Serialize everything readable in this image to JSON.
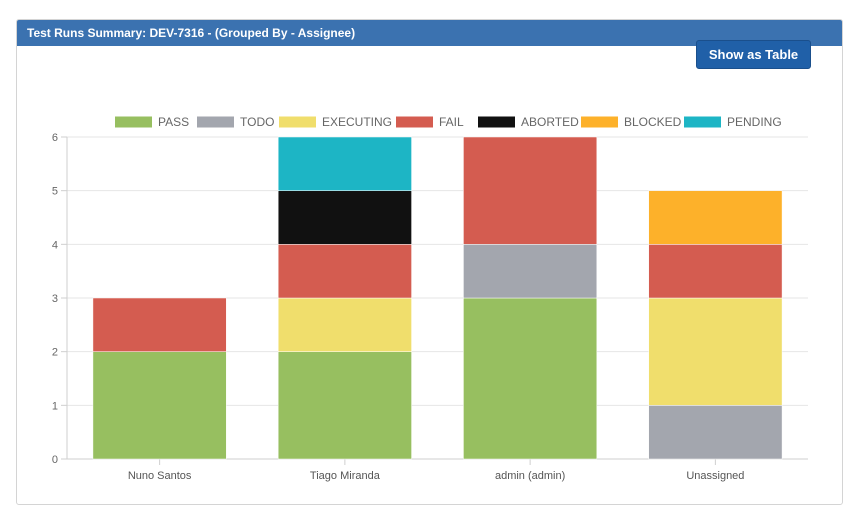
{
  "panel": {
    "title": "Test Runs Summary: DEV-7316 - (Grouped By - Assignee)",
    "show_table_label": "Show as Table"
  },
  "colors": {
    "PASS": "#97bf60",
    "TODO": "#a3a6ae",
    "EXECUTING": "#f0de6c",
    "FAIL": "#d45c50",
    "ABORTED": "#111111",
    "BLOCKED": "#fdb12a",
    "PENDING": "#1db5c5",
    "header": "#3b72b0",
    "button": "#2060a8"
  },
  "chart_data": {
    "type": "bar",
    "stacked": true,
    "title": "",
    "xlabel": "",
    "ylabel": "",
    "ylim": [
      0,
      6
    ],
    "yticks": [
      "0",
      "1",
      "2",
      "3",
      "4",
      "5",
      "6"
    ],
    "legend_position": "top",
    "grid": true,
    "categories": [
      "Nuno Santos",
      "Tiago Miranda",
      "admin (admin)",
      "Unassigned"
    ],
    "series": [
      {
        "name": "PASS",
        "values": [
          2,
          2,
          3,
          0
        ]
      },
      {
        "name": "TODO",
        "values": [
          0,
          0,
          1,
          1
        ]
      },
      {
        "name": "EXECUTING",
        "values": [
          0,
          1,
          0,
          2
        ]
      },
      {
        "name": "FAIL",
        "values": [
          1,
          1,
          2,
          1
        ]
      },
      {
        "name": "ABORTED",
        "values": [
          0,
          1,
          0,
          0
        ]
      },
      {
        "name": "BLOCKED",
        "values": [
          0,
          0,
          0,
          1
        ]
      },
      {
        "name": "PENDING",
        "values": [
          0,
          1,
          0,
          0
        ]
      }
    ]
  }
}
